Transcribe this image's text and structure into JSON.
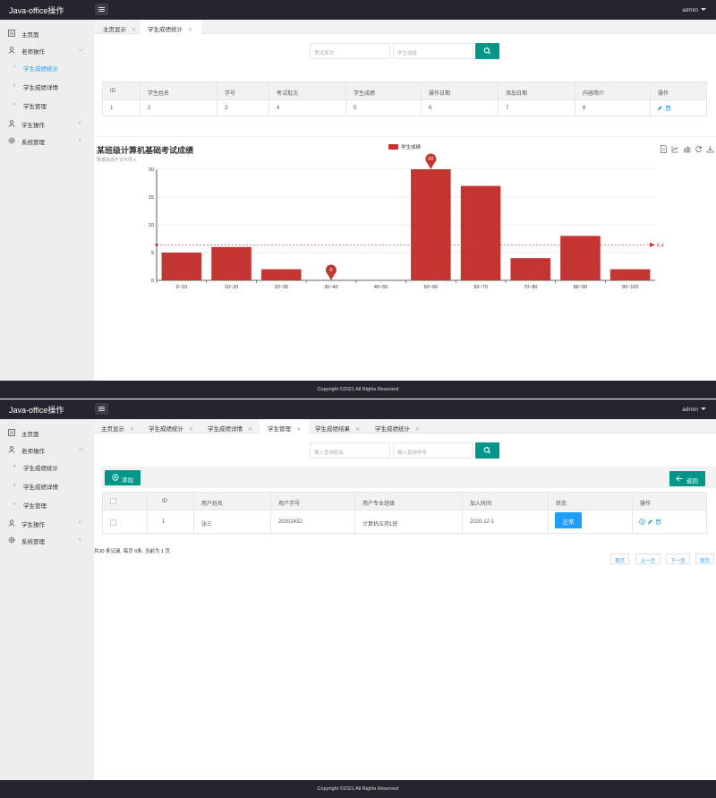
{
  "app": {
    "title": "Java-office操作",
    "user": "admin",
    "footer": "Copyright ©2021 All Rights Reserved"
  },
  "sidebar": {
    "home": "主页面",
    "teacher": "老师操作",
    "teacher_items": [
      "学生成绩统计",
      "学生成绩详情",
      "学生管理"
    ],
    "student": "学生操作",
    "system": "系统管理"
  },
  "panel1": {
    "tabs": [
      "主页显示",
      "学生成绩统计"
    ],
    "search": {
      "placeholder1": "考试周次",
      "placeholder2": "学生班级"
    },
    "table": {
      "headers": [
        "ID",
        "学生姓名",
        "学号",
        "考试批次",
        "学生成绩",
        "操作日期",
        "添加日期",
        "内容简介",
        "操作"
      ],
      "row": [
        "1",
        "2",
        "3",
        "4",
        "5",
        "6",
        "7",
        "8"
      ]
    },
    "chart_data": {
      "type": "bar",
      "title": "某班级计算机基础考试成绩",
      "subtitle": "数据来源于文件导入",
      "legend": "学生成绩",
      "categories": [
        "0~10",
        "10~20",
        "20~30",
        "30~40",
        "40~50",
        "50~60",
        "60~70",
        "70~80",
        "80~90",
        "90~100"
      ],
      "values": [
        5,
        6,
        2,
        0,
        0,
        20,
        17,
        4,
        8,
        2
      ],
      "ylim": [
        0,
        20
      ],
      "yticks": [
        "0",
        "5",
        "10",
        "15",
        "20"
      ],
      "markpoint_max": "20",
      "markpoint_min": "0",
      "markline_avg": "6.4",
      "color": "#c23531"
    }
  },
  "panel2": {
    "tabs": [
      "主页显示",
      "学生成绩统计",
      "学生成绩详情",
      "学生管理",
      "学生成绩结果",
      "学生成绩统计"
    ],
    "search": {
      "placeholder1": "输入查询姓名",
      "placeholder2": "输入查询学号"
    },
    "add_label": "添加",
    "back_label": "返回",
    "table": {
      "headers": [
        "ID",
        "用户姓名",
        "用户学号",
        "用户专业班级",
        "加入时间",
        "状态",
        "操作"
      ],
      "row": [
        "1",
        "张三",
        "20202432",
        "计算机应用1班",
        "2020-12-1"
      ],
      "status": "正常"
    },
    "pager": {
      "info": "共30 条记录, 每页 6条, 当前为 1 页",
      "first": "首页",
      "prev": "上一页",
      "next": "下一页",
      "last": "尾页"
    }
  },
  "colors": {
    "topbar": "#23262e",
    "accent": "#009688",
    "link": "#1E9FFF",
    "bar": "#c23531"
  }
}
